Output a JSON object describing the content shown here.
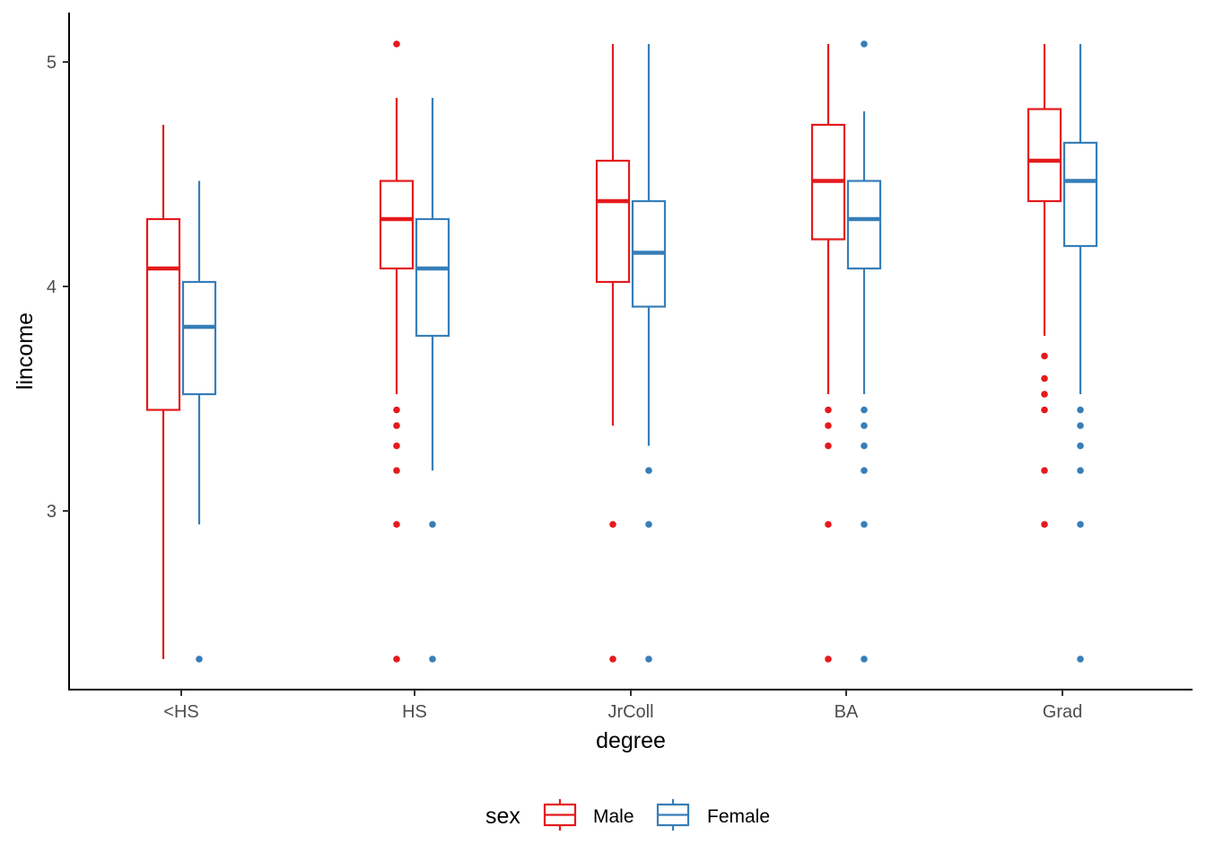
{
  "chart_data": {
    "type": "box",
    "title": "",
    "xlabel": "degree",
    "ylabel": "lincome",
    "ylim": [
      2.2,
      5.22
    ],
    "yticks": [
      3,
      4,
      5
    ],
    "ytick_labels": [
      "3",
      "4",
      "5"
    ],
    "categories": [
      "<HS",
      "HS",
      "JrColl",
      "BA",
      "Grad"
    ],
    "grid": false,
    "legend": {
      "title": "sex",
      "position": "bottom",
      "entries": [
        {
          "name": "Male",
          "color": "#e41a1c"
        },
        {
          "name": "Female",
          "color": "#377eb8"
        }
      ]
    },
    "series": [
      {
        "name": "Male",
        "color": "#e41a1c",
        "boxes": [
          {
            "category": "<HS",
            "whisker_low": 2.34,
            "q1": 3.45,
            "median": 4.08,
            "q3": 4.3,
            "whisker_high": 4.72,
            "outliers": []
          },
          {
            "category": "HS",
            "whisker_low": 3.52,
            "q1": 4.08,
            "median": 4.3,
            "q3": 4.47,
            "whisker_high": 4.84,
            "outliers": [
              5.08,
              3.45,
              3.38,
              3.29,
              3.18,
              2.94,
              2.34
            ]
          },
          {
            "category": "JrColl",
            "whisker_low": 3.38,
            "q1": 4.02,
            "median": 4.38,
            "q3": 4.56,
            "whisker_high": 5.08,
            "outliers": [
              2.94,
              2.34
            ]
          },
          {
            "category": "BA",
            "whisker_low": 3.52,
            "q1": 4.21,
            "median": 4.47,
            "q3": 4.72,
            "whisker_high": 5.08,
            "outliers": [
              3.45,
              3.38,
              3.29,
              2.94,
              2.34
            ]
          },
          {
            "category": "Grad",
            "whisker_low": 3.78,
            "q1": 4.38,
            "median": 4.56,
            "q3": 4.79,
            "whisker_high": 5.08,
            "outliers": [
              3.69,
              3.59,
              3.52,
              3.45,
              3.18,
              2.94
            ]
          }
        ]
      },
      {
        "name": "Female",
        "color": "#377eb8",
        "boxes": [
          {
            "category": "<HS",
            "whisker_low": 2.94,
            "q1": 3.52,
            "median": 3.82,
            "q3": 4.02,
            "whisker_high": 4.47,
            "outliers": [
              2.34
            ]
          },
          {
            "category": "HS",
            "whisker_low": 3.18,
            "q1": 3.78,
            "median": 4.08,
            "q3": 4.3,
            "whisker_high": 4.84,
            "outliers": [
              2.94,
              2.34
            ]
          },
          {
            "category": "JrColl",
            "whisker_low": 3.29,
            "q1": 3.91,
            "median": 4.15,
            "q3": 4.38,
            "whisker_high": 5.08,
            "outliers": [
              3.18,
              2.94,
              2.34
            ]
          },
          {
            "category": "BA",
            "whisker_low": 3.52,
            "q1": 4.08,
            "median": 4.3,
            "q3": 4.47,
            "whisker_high": 4.78,
            "outliers": [
              5.08,
              3.45,
              3.38,
              3.29,
              3.18,
              2.94,
              2.34
            ]
          },
          {
            "category": "Grad",
            "whisker_low": 3.52,
            "q1": 4.18,
            "median": 4.47,
            "q3": 4.64,
            "whisker_high": 5.08,
            "outliers": [
              3.45,
              3.38,
              3.29,
              3.18,
              2.94,
              2.34
            ]
          }
        ]
      }
    ]
  }
}
